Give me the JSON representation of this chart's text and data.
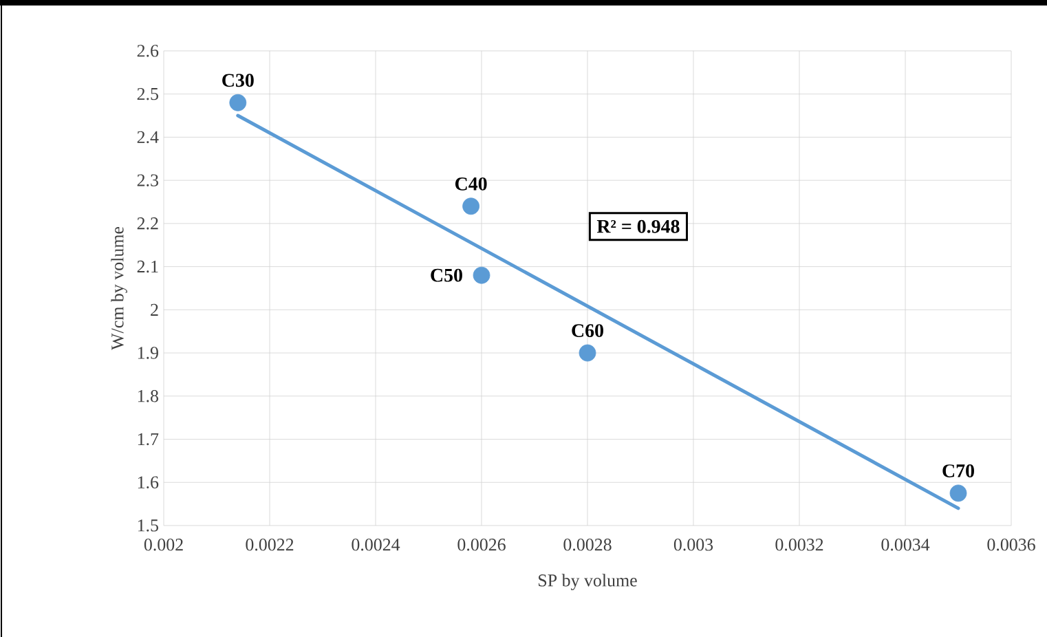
{
  "chart_data": {
    "type": "scatter",
    "xlabel": "SP by volume",
    "ylabel": "W/cm by volume",
    "xlim": [
      0.002,
      0.0036
    ],
    "xticks": [
      0.002,
      0.0022,
      0.0024,
      0.0026,
      0.0028,
      0.003,
      0.0032,
      0.0034,
      0.0036
    ],
    "ylim": [
      1.5,
      2.6
    ],
    "yticks": [
      1.5,
      1.6,
      1.7,
      1.8,
      1.9,
      2,
      2.1,
      2.2,
      2.3,
      2.4,
      2.5,
      2.6
    ],
    "grid": true,
    "marker": "circle",
    "series": [
      {
        "color": "#5b9bd5",
        "x": [
          0.00214,
          0.00258,
          0.0026,
          0.0028,
          0.0035
        ],
        "values": [
          2.48,
          2.24,
          2.08,
          1.9,
          1.575
        ]
      },
      {
        "type": "line",
        "color": "#5b9bd5",
        "marker": "none",
        "x": [
          0.00214,
          0.0035
        ],
        "values": [
          2.45,
          1.54
        ]
      }
    ],
    "annotations": [
      {
        "text": "C30",
        "x": 0.00214,
        "y": 2.48
      },
      {
        "text": "C40",
        "x": 0.00258,
        "y": 2.24
      },
      {
        "text": "C50",
        "x": 0.0026,
        "y": 2.08
      },
      {
        "text": "C60",
        "x": 0.0028,
        "y": 1.9
      },
      {
        "text": "C70",
        "x": 0.0035,
        "y": 1.575
      },
      "R² = 0.948"
    ]
  }
}
